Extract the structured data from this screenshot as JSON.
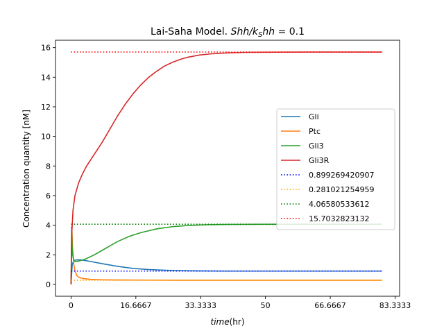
{
  "chart_data": {
    "type": "line",
    "title": "Lai-Saha Model. Shh/k_Shh = 0.1",
    "title_parts": {
      "prefix": "Lai-Saha Model. ",
      "math": "Shh/k",
      "sub": "S",
      "tail": "hh",
      "suffix": " = 0.1"
    },
    "xlabel_math": "time",
    "xlabel_rest": "(hr)",
    "ylabel": "Concentration quantity [nM]",
    "xlim": [
      -4.0,
      84.5
    ],
    "ylim": [
      -0.8,
      16.5
    ],
    "xticks": [
      0,
      16.6667,
      33.3333,
      50,
      66.6667,
      83.3333
    ],
    "xtick_labels": [
      "0",
      "16.6667",
      "33.3333",
      "50",
      "66.6667",
      "83.3333"
    ],
    "yticks": [
      0,
      2,
      4,
      6,
      8,
      10,
      12,
      14,
      16
    ],
    "ytick_labels": [
      "0",
      "2",
      "4",
      "6",
      "8",
      "10",
      "12",
      "14",
      "16"
    ],
    "grid": false,
    "legend_position": "center-right",
    "series": [
      {
        "name": "Gli",
        "color": "#1f77b4",
        "style": "solid",
        "x": [
          0,
          0.3,
          0.7,
          1.2,
          2,
          3,
          5,
          8,
          12,
          16,
          20,
          25,
          30,
          35,
          40,
          50,
          60,
          70,
          80
        ],
        "y": [
          0,
          1.35,
          1.6,
          1.65,
          1.66,
          1.64,
          1.55,
          1.4,
          1.22,
          1.08,
          1.0,
          0.95,
          0.92,
          0.91,
          0.9,
          0.9,
          0.9,
          0.9,
          0.9
        ]
      },
      {
        "name": "Ptc",
        "color": "#ff7f0e",
        "style": "solid",
        "x": [
          0,
          0.2,
          0.4,
          0.7,
          1,
          1.5,
          2,
          3,
          5,
          8,
          12,
          20,
          30,
          50,
          80
        ],
        "y": [
          0,
          3.8,
          2.5,
          1.4,
          0.9,
          0.6,
          0.48,
          0.4,
          0.34,
          0.31,
          0.3,
          0.29,
          0.28,
          0.28,
          0.28
        ]
      },
      {
        "name": "Gli3",
        "color": "#2ca02c",
        "style": "solid",
        "x": [
          0,
          0.15,
          0.3,
          0.6,
          1,
          1.5,
          2,
          3,
          4,
          6,
          8,
          10,
          12,
          15,
          18,
          22,
          26,
          30,
          35,
          40,
          50,
          60,
          70,
          80
        ],
        "y": [
          0,
          3.9,
          2.2,
          1.7,
          1.55,
          1.55,
          1.58,
          1.65,
          1.75,
          2.0,
          2.3,
          2.6,
          2.9,
          3.25,
          3.5,
          3.75,
          3.9,
          3.98,
          4.03,
          4.05,
          4.06,
          4.066,
          4.066,
          4.066
        ]
      },
      {
        "name": "Gli3R",
        "color": "#d62728",
        "style": "solid",
        "x": [
          0,
          0.2,
          0.5,
          1,
          2,
          3,
          4,
          5,
          6,
          8,
          10,
          12,
          14,
          16,
          18,
          20,
          22,
          24,
          26,
          28,
          30,
          33,
          36,
          40,
          45,
          50,
          60,
          70,
          80
        ],
        "y": [
          0,
          3.5,
          5.0,
          6.0,
          6.9,
          7.5,
          8.0,
          8.4,
          8.8,
          9.6,
          10.5,
          11.4,
          12.2,
          12.9,
          13.5,
          14.0,
          14.4,
          14.75,
          15.0,
          15.2,
          15.35,
          15.5,
          15.58,
          15.64,
          15.68,
          15.69,
          15.7,
          15.7,
          15.7
        ]
      },
      {
        "name": "0.899269420907",
        "color": "#0000ff",
        "style": "dotted",
        "x": [
          0,
          80
        ],
        "y": [
          0.899269420907,
          0.899269420907
        ]
      },
      {
        "name": "0.281021254959",
        "color": "#ffa500",
        "style": "dotted",
        "x": [
          0,
          80
        ],
        "y": [
          0.281021254959,
          0.281021254959
        ]
      },
      {
        "name": "4.06580533612",
        "color": "#008000",
        "style": "dotted",
        "x": [
          0,
          80
        ],
        "y": [
          4.06580533612,
          4.06580533612
        ]
      },
      {
        "name": "15.7032823132",
        "color": "#ff0000",
        "style": "dotted",
        "x": [
          0,
          80
        ],
        "y": [
          15.7032823132,
          15.7032823132
        ]
      }
    ]
  }
}
